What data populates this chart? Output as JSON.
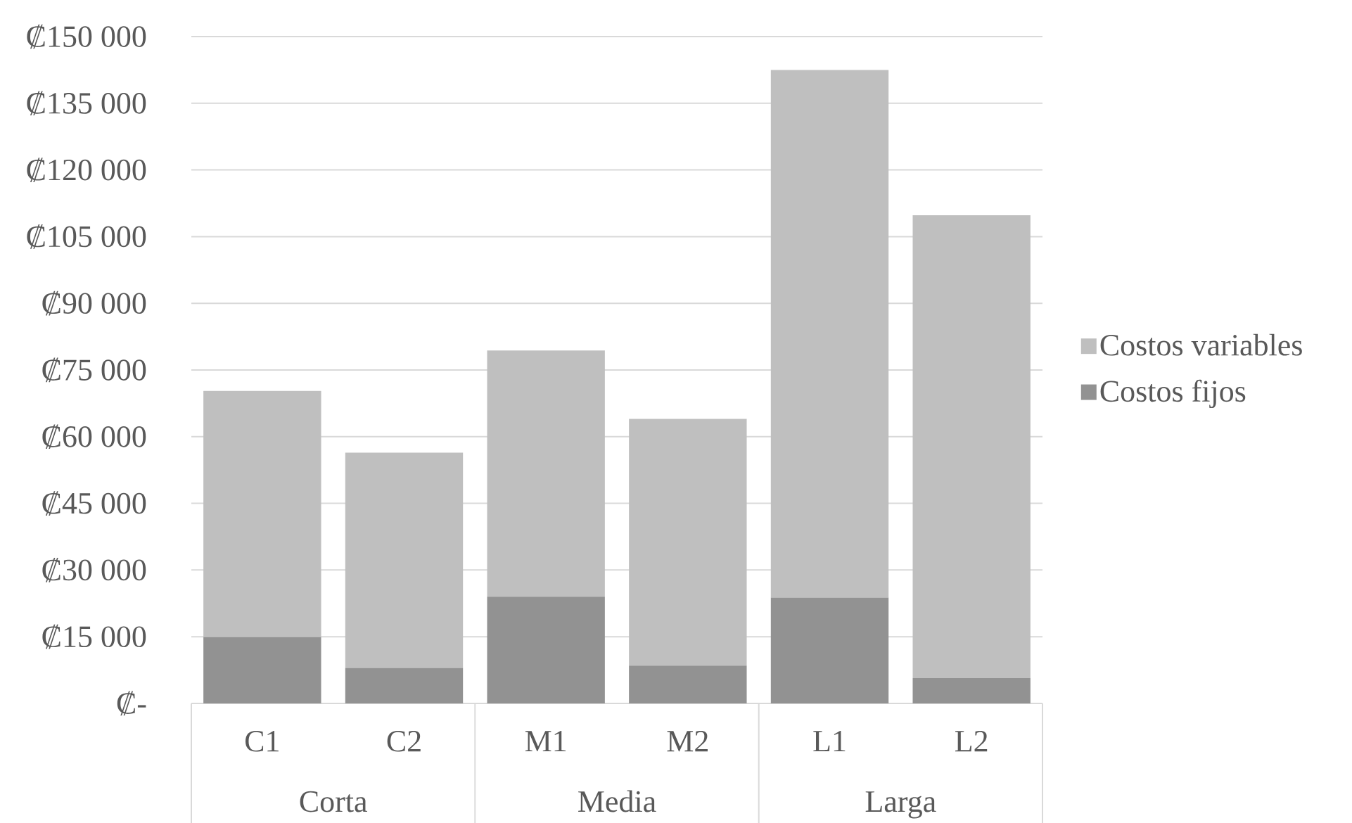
{
  "chart_data": {
    "type": "bar",
    "stacked": true,
    "categories": [
      "C1",
      "C2",
      "M1",
      "M2",
      "L1",
      "L2"
    ],
    "series": [
      {
        "name": "Costos fijos",
        "color": "#929292",
        "values": [
          14900,
          8000,
          24000,
          8500,
          23800,
          5700
        ]
      },
      {
        "name": "Costos variables",
        "color": "#bfbfbf",
        "values": [
          55400,
          48400,
          55400,
          55500,
          118700,
          104100
        ]
      }
    ],
    "ylim": [
      0,
      150000
    ],
    "yticks": [
      {
        "value": 0,
        "label": "₡-"
      },
      {
        "value": 15000,
        "label": "₡15 000"
      },
      {
        "value": 30000,
        "label": "₡30 000"
      },
      {
        "value": 45000,
        "label": "₡45 000"
      },
      {
        "value": 60000,
        "label": "₡60 000"
      },
      {
        "value": 75000,
        "label": "₡75 000"
      },
      {
        "value": 90000,
        "label": "₡90 000"
      },
      {
        "value": 105000,
        "label": "₡105 000"
      },
      {
        "value": 120000,
        "label": "₡120 000"
      },
      {
        "value": 135000,
        "label": "₡135 000"
      },
      {
        "value": 150000,
        "label": "₡150 000"
      }
    ],
    "grid": "y",
    "legend": "right",
    "annotations": [
      "Corta",
      "Media",
      "Larga"
    ]
  }
}
